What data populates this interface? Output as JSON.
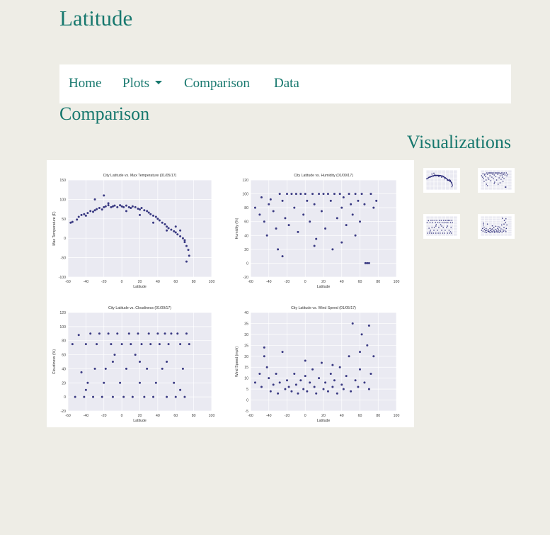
{
  "site": {
    "title": "Latitude"
  },
  "nav": {
    "items": [
      {
        "label": "Home"
      },
      {
        "label": "Plots",
        "dropdown": true
      },
      {
        "label": "Comparison"
      },
      {
        "label": "Data"
      }
    ]
  },
  "page": {
    "heading": "Comparison"
  },
  "sidebar": {
    "heading": "Visualizations",
    "thumb_count": 4
  },
  "colors": {
    "accent": "#17786e",
    "background": "#eeede6",
    "plot_bg": "#eaeaf2",
    "points": "#1a1a6e"
  },
  "chart_data": [
    {
      "type": "scatter",
      "title": "City Latitude vs. Max Temperature (01/05/17)",
      "xlabel": "Latitude",
      "ylabel": "Max Temperature (F)",
      "xlim": [
        -60,
        100
      ],
      "ylim": [
        -100,
        150
      ],
      "xticks": [
        "-60",
        "-40",
        "-20",
        "0",
        "20",
        "40",
        "60",
        "80",
        "100"
      ],
      "yticks": [
        "-100",
        "-50",
        "0",
        "50",
        "100",
        "150"
      ],
      "grid": true,
      "points": [
        [
          -57,
          40
        ],
        [
          -55,
          42
        ],
        [
          -50,
          48
        ],
        [
          -48,
          55
        ],
        [
          -45,
          60
        ],
        [
          -42,
          62
        ],
        [
          -40,
          58
        ],
        [
          -38,
          65
        ],
        [
          -35,
          70
        ],
        [
          -32,
          68
        ],
        [
          -30,
          72
        ],
        [
          -28,
          75
        ],
        [
          -25,
          78
        ],
        [
          -22,
          74
        ],
        [
          -20,
          80
        ],
        [
          -18,
          82
        ],
        [
          -15,
          85
        ],
        [
          -12,
          80
        ],
        [
          -10,
          82
        ],
        [
          -8,
          84
        ],
        [
          -5,
          80
        ],
        [
          -2,
          85
        ],
        [
          0,
          82
        ],
        [
          2,
          80
        ],
        [
          5,
          84
        ],
        [
          8,
          80
        ],
        [
          10,
          78
        ],
        [
          12,
          82
        ],
        [
          15,
          80
        ],
        [
          18,
          76
        ],
        [
          20,
          74
        ],
        [
          22,
          78
        ],
        [
          25,
          72
        ],
        [
          28,
          70
        ],
        [
          30,
          66
        ],
        [
          32,
          62
        ],
        [
          35,
          58
        ],
        [
          38,
          55
        ],
        [
          40,
          50
        ],
        [
          42,
          46
        ],
        [
          45,
          40
        ],
        [
          48,
          36
        ],
        [
          50,
          30
        ],
        [
          52,
          26
        ],
        [
          55,
          22
        ],
        [
          58,
          18
        ],
        [
          60,
          15
        ],
        [
          62,
          10
        ],
        [
          65,
          5
        ],
        [
          68,
          0
        ],
        [
          70,
          -10
        ],
        [
          72,
          -20
        ],
        [
          74,
          -30
        ],
        [
          75,
          -45
        ],
        [
          -30,
          100
        ],
        [
          -20,
          110
        ],
        [
          -15,
          90
        ],
        [
          5,
          70
        ],
        [
          20,
          60
        ],
        [
          35,
          40
        ],
        [
          50,
          20
        ],
        [
          60,
          30
        ],
        [
          65,
          20
        ],
        [
          70,
          -5
        ],
        [
          72,
          -60
        ]
      ]
    },
    {
      "type": "scatter",
      "title": "City Latitude vs. Humidity (01/09/17)",
      "xlabel": "Latitude",
      "ylabel": "Humidity (%)",
      "xlim": [
        -60,
        100
      ],
      "ylim": [
        -20,
        120
      ],
      "xticks": [
        "-60",
        "-40",
        "-20",
        "0",
        "20",
        "40",
        "60",
        "80",
        "100"
      ],
      "yticks": [
        "-20",
        "0",
        "20",
        "40",
        "60",
        "80",
        "100",
        "120"
      ],
      "grid": true,
      "points": [
        [
          -55,
          80
        ],
        [
          -50,
          70
        ],
        [
          -48,
          95
        ],
        [
          -45,
          60
        ],
        [
          -42,
          40
        ],
        [
          -40,
          85
        ],
        [
          -38,
          92
        ],
        [
          -35,
          75
        ],
        [
          -32,
          50
        ],
        [
          -30,
          20
        ],
        [
          -28,
          100
        ],
        [
          -25,
          90
        ],
        [
          -22,
          65
        ],
        [
          -20,
          100
        ],
        [
          -18,
          55
        ],
        [
          -15,
          100
        ],
        [
          -12,
          80
        ],
        [
          -10,
          100
        ],
        [
          -8,
          45
        ],
        [
          -5,
          100
        ],
        [
          -2,
          70
        ],
        [
          0,
          100
        ],
        [
          2,
          90
        ],
        [
          5,
          60
        ],
        [
          8,
          100
        ],
        [
          10,
          85
        ],
        [
          12,
          35
        ],
        [
          15,
          100
        ],
        [
          18,
          75
        ],
        [
          20,
          100
        ],
        [
          22,
          50
        ],
        [
          25,
          100
        ],
        [
          28,
          90
        ],
        [
          30,
          20
        ],
        [
          32,
          100
        ],
        [
          35,
          65
        ],
        [
          38,
          100
        ],
        [
          40,
          80
        ],
        [
          42,
          95
        ],
        [
          45,
          55
        ],
        [
          48,
          100
        ],
        [
          50,
          85
        ],
        [
          52,
          70
        ],
        [
          55,
          100
        ],
        [
          58,
          90
        ],
        [
          60,
          60
        ],
        [
          62,
          100
        ],
        [
          65,
          85
        ],
        [
          66,
          0
        ],
        [
          68,
          0
        ],
        [
          70,
          0
        ],
        [
          72,
          100
        ],
        [
          75,
          80
        ],
        [
          78,
          90
        ],
        [
          -25,
          10
        ],
        [
          10,
          25
        ],
        [
          40,
          30
        ],
        [
          55,
          40
        ]
      ]
    },
    {
      "type": "scatter",
      "title": "City Latitude vs. Cloudiness (01/09/17)",
      "xlabel": "Latitude",
      "ylabel": "Cloudiness (%)",
      "xlim": [
        -60,
        100
      ],
      "ylim": [
        -20,
        120
      ],
      "xticks": [
        "-60",
        "-40",
        "-20",
        "0",
        "20",
        "40",
        "60",
        "80",
        "100"
      ],
      "yticks": [
        "-20",
        "0",
        "20",
        "40",
        "60",
        "80",
        "100",
        "120"
      ],
      "grid": true,
      "points": [
        [
          -55,
          75
        ],
        [
          -52,
          0
        ],
        [
          -48,
          88
        ],
        [
          -45,
          35
        ],
        [
          -42,
          0
        ],
        [
          -40,
          75
        ],
        [
          -38,
          20
        ],
        [
          -35,
          90
        ],
        [
          -32,
          0
        ],
        [
          -30,
          40
        ],
        [
          -28,
          75
        ],
        [
          -25,
          90
        ],
        [
          -22,
          0
        ],
        [
          -20,
          20
        ],
        [
          -18,
          40
        ],
        [
          -15,
          90
        ],
        [
          -12,
          75
        ],
        [
          -10,
          0
        ],
        [
          -8,
          60
        ],
        [
          -5,
          90
        ],
        [
          -2,
          20
        ],
        [
          0,
          75
        ],
        [
          2,
          0
        ],
        [
          5,
          40
        ],
        [
          8,
          90
        ],
        [
          10,
          75
        ],
        [
          12,
          0
        ],
        [
          15,
          60
        ],
        [
          18,
          90
        ],
        [
          20,
          20
        ],
        [
          22,
          75
        ],
        [
          25,
          0
        ],
        [
          28,
          40
        ],
        [
          30,
          90
        ],
        [
          32,
          75
        ],
        [
          35,
          0
        ],
        [
          38,
          20
        ],
        [
          40,
          90
        ],
        [
          42,
          75
        ],
        [
          45,
          40
        ],
        [
          48,
          90
        ],
        [
          50,
          0
        ],
        [
          52,
          75
        ],
        [
          55,
          90
        ],
        [
          58,
          20
        ],
        [
          60,
          0
        ],
        [
          62,
          90
        ],
        [
          65,
          75
        ],
        [
          68,
          40
        ],
        [
          70,
          0
        ],
        [
          72,
          90
        ],
        [
          75,
          75
        ],
        [
          -40,
          10
        ],
        [
          -10,
          50
        ],
        [
          20,
          50
        ],
        [
          50,
          50
        ],
        [
          65,
          10
        ]
      ]
    },
    {
      "type": "scatter",
      "title": "City Latitude vs. Wind Speed (01/05/17)",
      "xlabel": "Latitude",
      "ylabel": "Wind Speed (mph)",
      "xlim": [
        -60,
        100
      ],
      "ylim": [
        -5,
        40
      ],
      "xticks": [
        "-60",
        "-40",
        "-20",
        "0",
        "20",
        "40",
        "60",
        "80",
        "100"
      ],
      "yticks": [
        "-5",
        "0",
        "5",
        "10",
        "15",
        "20",
        "25",
        "30",
        "35",
        "40"
      ],
      "grid": true,
      "points": [
        [
          -55,
          8
        ],
        [
          -50,
          12
        ],
        [
          -48,
          6
        ],
        [
          -45,
          20
        ],
        [
          -42,
          15
        ],
        [
          -40,
          10
        ],
        [
          -38,
          4
        ],
        [
          -35,
          7
        ],
        [
          -32,
          12
        ],
        [
          -30,
          3
        ],
        [
          -28,
          8
        ],
        [
          -25,
          22
        ],
        [
          -22,
          5
        ],
        [
          -20,
          9
        ],
        [
          -18,
          6
        ],
        [
          -15,
          4
        ],
        [
          -12,
          12
        ],
        [
          -10,
          7
        ],
        [
          -8,
          3
        ],
        [
          -5,
          9
        ],
        [
          -2,
          5
        ],
        [
          0,
          11
        ],
        [
          2,
          4
        ],
        [
          5,
          8
        ],
        [
          8,
          14
        ],
        [
          10,
          6
        ],
        [
          12,
          3
        ],
        [
          15,
          10
        ],
        [
          18,
          17
        ],
        [
          20,
          5
        ],
        [
          22,
          8
        ],
        [
          25,
          4
        ],
        [
          28,
          12
        ],
        [
          30,
          6
        ],
        [
          32,
          9
        ],
        [
          35,
          3
        ],
        [
          38,
          15
        ],
        [
          40,
          7
        ],
        [
          42,
          5
        ],
        [
          45,
          11
        ],
        [
          48,
          20
        ],
        [
          50,
          4
        ],
        [
          52,
          35
        ],
        [
          55,
          9
        ],
        [
          58,
          6
        ],
        [
          60,
          14
        ],
        [
          62,
          30
        ],
        [
          65,
          8
        ],
        [
          68,
          25
        ],
        [
          70,
          5
        ],
        [
          72,
          12
        ],
        [
          75,
          20
        ],
        [
          -45,
          24
        ],
        [
          0,
          18
        ],
        [
          30,
          16
        ],
        [
          60,
          22
        ],
        [
          70,
          34
        ]
      ]
    }
  ]
}
